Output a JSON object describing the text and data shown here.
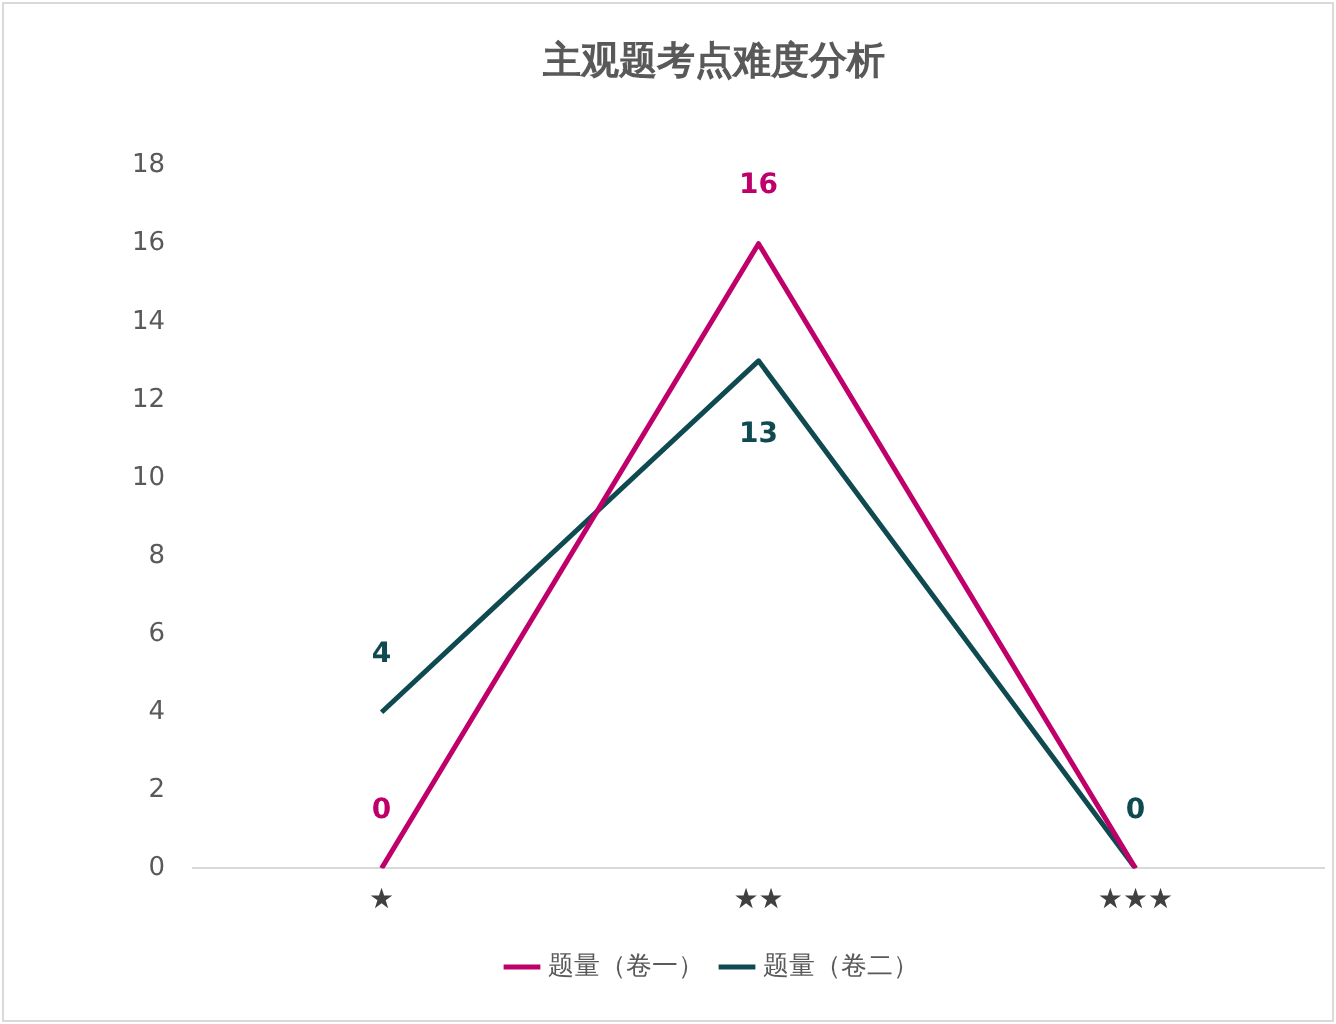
{
  "chart_data": {
    "type": "line",
    "title": "主观题考点难度分析",
    "categories": [
      "★",
      "★★",
      "★★★"
    ],
    "series": [
      {
        "name": "题量（卷一）",
        "color": "#c0006a",
        "values": [
          0,
          16,
          0
        ],
        "value_labels": [
          "0",
          "16",
          null
        ]
      },
      {
        "name": "题量（卷二）",
        "color": "#0f4a50",
        "values": [
          4,
          13,
          0
        ],
        "value_labels": [
          "4",
          "13",
          "0"
        ]
      }
    ],
    "ylim": [
      0,
      18
    ],
    "yticks": [
      0,
      2,
      4,
      6,
      8,
      10,
      12,
      14,
      16,
      18
    ],
    "grid": false,
    "legend": "bottom",
    "marker": "none",
    "line_style": "solid"
  }
}
